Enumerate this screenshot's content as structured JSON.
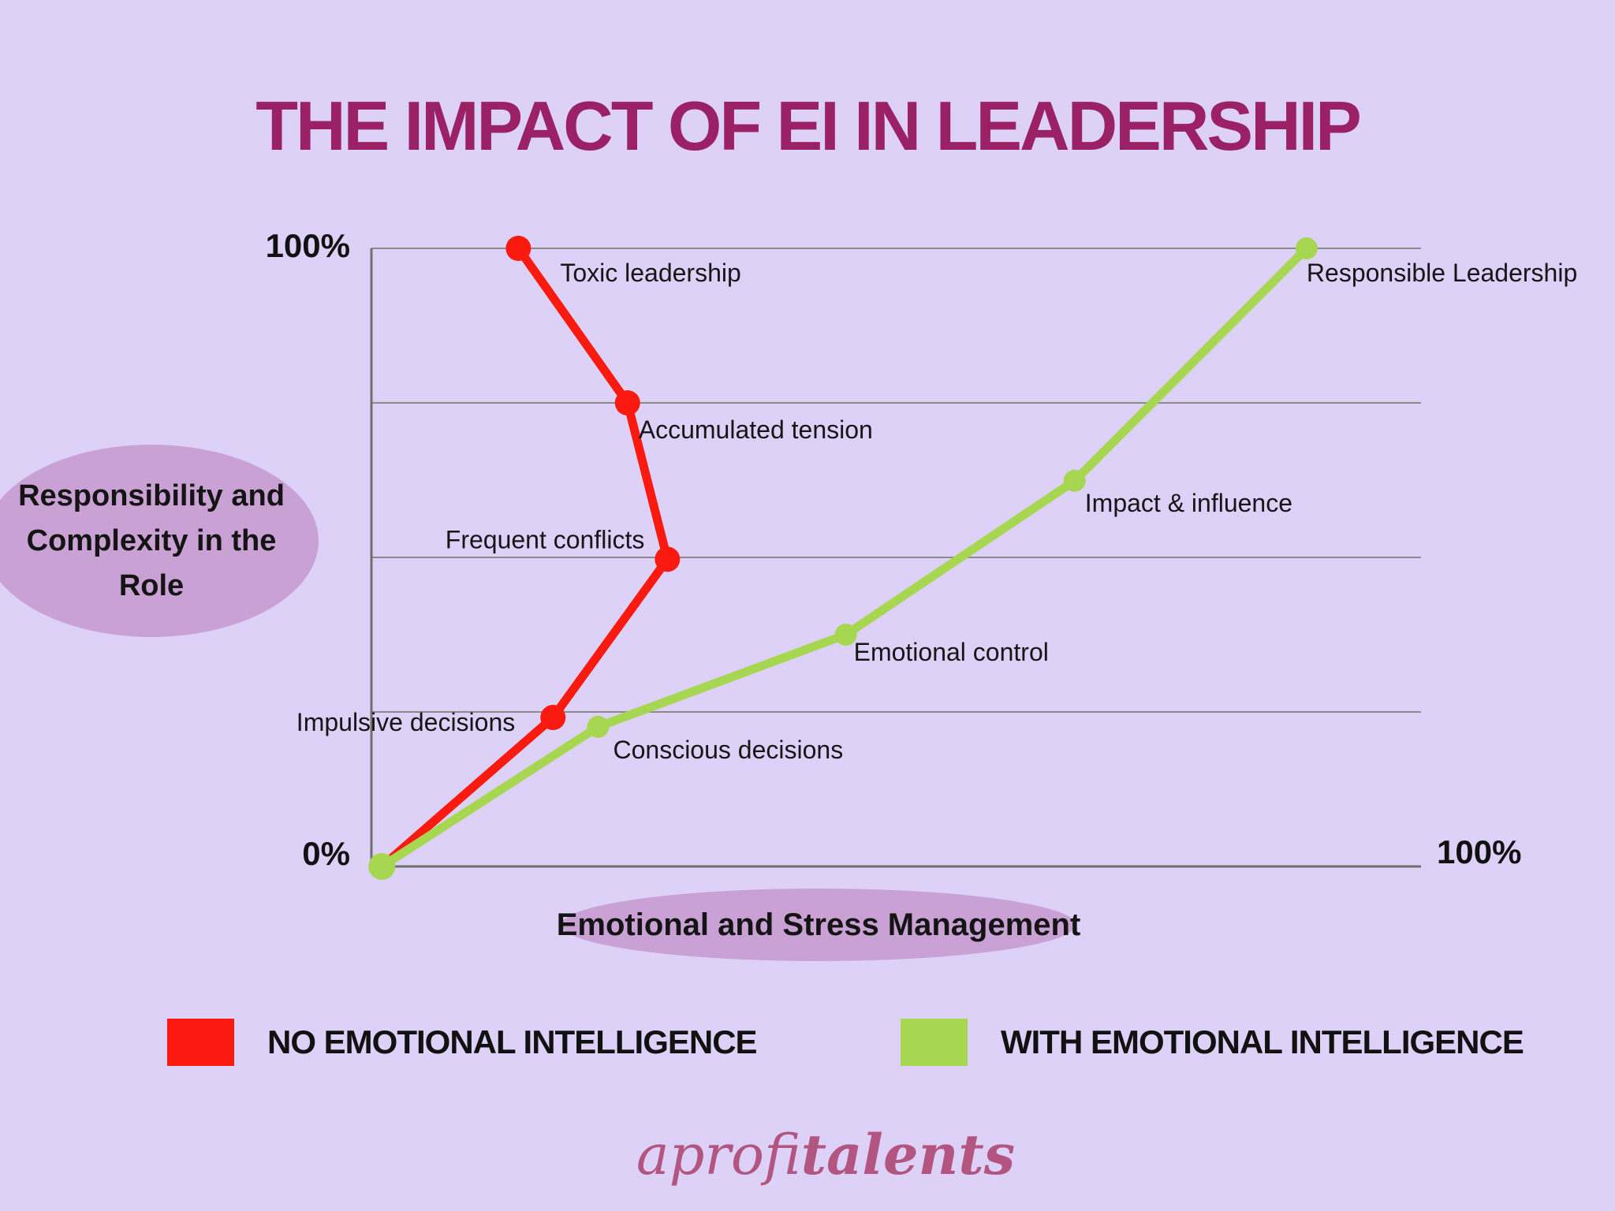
{
  "title": "THE IMPACT OF EI IN LEADERSHIP",
  "y_axis": {
    "top_label": "100%",
    "bottom_label": "0%",
    "axis_name_lines": [
      "Responsibility and",
      "Complexity in the",
      "Role"
    ]
  },
  "x_axis": {
    "right_label": "100%",
    "axis_name": "Emotional and Stress Management"
  },
  "legend": [
    {
      "label": "NO EMOTIONAL INTELLIGENCE",
      "color": "#FA1A10"
    },
    {
      "label": "WITH EMOTIONAL INTELLIGENCE",
      "color": "#A7D650"
    }
  ],
  "footer": {
    "brand_light": "aprofi",
    "brand_bold": "talents"
  },
  "colors": {
    "background": "#DDD1F8",
    "title": "#9B2166",
    "ellipse": "#C9A1D4",
    "red_series": "#FA1A10",
    "green_series": "#A7D650",
    "gridline": "#8A8A8A",
    "axis": "#6F6F6F",
    "label_text": "#161616",
    "brand": "#B25681"
  },
  "chart_data": {
    "type": "line",
    "title": "The impact of EI in leadership",
    "xlabel": "Emotional and Stress Management",
    "ylabel": "Responsibility and Complexity in the Role",
    "x_range": [
      0,
      100
    ],
    "y_range": [
      0,
      100
    ],
    "grid": "horizontal gridlines at 0/25/50/75/100%, vertical axis only",
    "legend_position": "bottom",
    "series": [
      {
        "name": "NO EMOTIONAL INTELLIGENCE",
        "color": "#FA1A10",
        "dot_radius": 16,
        "points": [
          {
            "x": 1,
            "y": 0,
            "label": "",
            "dot": false
          },
          {
            "x": 17.3,
            "y": 24.1,
            "label": "Impulsive decisions",
            "label_anchor": "end",
            "label_dx": -48,
            "label_dy": 17
          },
          {
            "x": 28.2,
            "y": 49.7,
            "label": "Frequent conflicts",
            "label_anchor": "end",
            "label_dx": -29,
            "label_dy": -14
          },
          {
            "x": 24.4,
            "y": 75,
            "label": "Accumulated tension",
            "label_anchor": "start",
            "label_dx": 14,
            "label_dy": 45
          },
          {
            "x": 14,
            "y": 100,
            "label": "Toxic leadership",
            "label_anchor": "start",
            "label_dx": 53,
            "label_dy": 42
          }
        ]
      },
      {
        "name": "WITH EMOTIONAL INTELLIGENCE",
        "color": "#A7D650",
        "dot_radius": 14,
        "points": [
          {
            "x": 1,
            "y": 0,
            "label": "",
            "dot": true,
            "dot_radius": 17
          },
          {
            "x": 21.6,
            "y": 22.6,
            "label": "Conscious decisions",
            "label_anchor": "start",
            "label_dx": 19,
            "label_dy": 40
          },
          {
            "x": 45.2,
            "y": 37.5,
            "label": "Emotional control",
            "label_anchor": "start",
            "label_dx": 10,
            "label_dy": 33
          },
          {
            "x": 67,
            "y": 62.4,
            "label": "Impact & influence",
            "label_anchor": "start",
            "label_dx": 13,
            "label_dy": 39
          },
          {
            "x": 89.1,
            "y": 100,
            "label": "Responsible Leadership",
            "label_anchor": "start",
            "label_dx": 0,
            "label_dy": 42
          }
        ]
      }
    ]
  }
}
